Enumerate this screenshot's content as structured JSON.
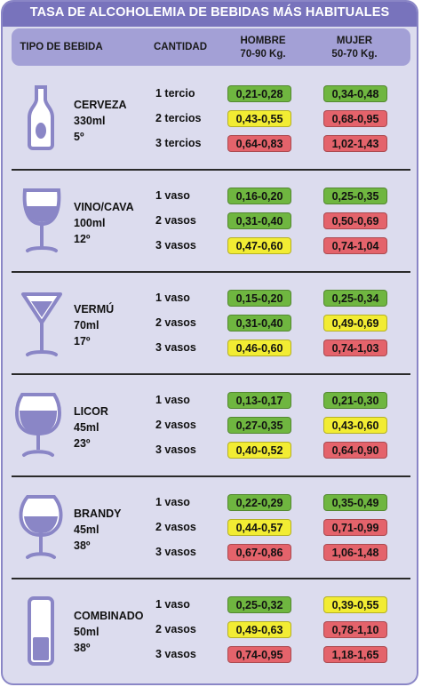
{
  "title": "TASA DE ALCOHOLEMIA DE BEBIDAS MÁS HABITUALES",
  "colors": {
    "green": "#6fb640",
    "yellow": "#f2ec33",
    "red": "#e4636b",
    "frame": "#7873bc"
  },
  "header": {
    "drink_type": "TIPO DE BEBIDA",
    "quantity": "CANTIDAD",
    "man_line1": "HOMBRE",
    "man_line2": "70-90 Kg.",
    "woman_line1": "MUJER",
    "woman_line2": "50-70 Kg."
  },
  "drinks": [
    {
      "name": "CERVEZA",
      "volume": "330ml",
      "grade": "5º",
      "icon": "beer-bottle-icon",
      "rows": [
        {
          "qty": "1 tercio",
          "man": "0,21-0,28",
          "man_level": "green",
          "woman": "0,34-0,48",
          "woman_level": "green"
        },
        {
          "qty": "2 tercios",
          "man": "0,43-0,55",
          "man_level": "yellow",
          "woman": "0,68-0,95",
          "woman_level": "red"
        },
        {
          "qty": "3 tercios",
          "man": "0,64-0,83",
          "man_level": "red",
          "woman": "1,02-1,43",
          "woman_level": "red"
        }
      ]
    },
    {
      "name": "VINO/CAVA",
      "volume": "100ml",
      "grade": "12º",
      "icon": "wine-glass-icon",
      "rows": [
        {
          "qty": "1 vaso",
          "man": "0,16-0,20",
          "man_level": "green",
          "woman": "0,25-0,35",
          "woman_level": "green"
        },
        {
          "qty": "2 vasos",
          "man": "0,31-0,40",
          "man_level": "green",
          "woman": "0,50-0,69",
          "woman_level": "red"
        },
        {
          "qty": "3 vasos",
          "man": "0,47-0,60",
          "man_level": "yellow",
          "woman": "0,74-1,04",
          "woman_level": "red"
        }
      ]
    },
    {
      "name": "VERMÚ",
      "volume": "70ml",
      "grade": "17º",
      "icon": "martini-glass-icon",
      "rows": [
        {
          "qty": "1 vaso",
          "man": "0,15-0,20",
          "man_level": "green",
          "woman": "0,25-0,34",
          "woman_level": "green"
        },
        {
          "qty": "2 vasos",
          "man": "0,31-0,40",
          "man_level": "green",
          "woman": "0,49-0,69",
          "woman_level": "yellow"
        },
        {
          "qty": "3 vasos",
          "man": "0,46-0,60",
          "man_level": "yellow",
          "woman": "0,74-1,03",
          "woman_level": "red"
        }
      ]
    },
    {
      "name": "LICOR",
      "volume": "45ml",
      "grade": "23º",
      "icon": "liqueur-glass-icon",
      "rows": [
        {
          "qty": "1 vaso",
          "man": "0,13-0,17",
          "man_level": "green",
          "woman": "0,21-0,30",
          "woman_level": "green"
        },
        {
          "qty": "2 vasos",
          "man": "0,27-0,35",
          "man_level": "green",
          "woman": "0,43-0,60",
          "woman_level": "yellow"
        },
        {
          "qty": "3 vasos",
          "man": "0,40-0,52",
          "man_level": "yellow",
          "woman": "0,64-0,90",
          "woman_level": "red"
        }
      ]
    },
    {
      "name": "BRANDY",
      "volume": "45ml",
      "grade": "38º",
      "icon": "brandy-glass-icon",
      "rows": [
        {
          "qty": "1 vaso",
          "man": "0,22-0,29",
          "man_level": "green",
          "woman": "0,35-0,49",
          "woman_level": "green"
        },
        {
          "qty": "2 vasos",
          "man": "0,44-0,57",
          "man_level": "yellow",
          "woman": "0,71-0,99",
          "woman_level": "red"
        },
        {
          "qty": "3 vasos",
          "man": "0,67-0,86",
          "man_level": "red",
          "woman": "1,06-1,48",
          "woman_level": "red"
        }
      ]
    },
    {
      "name": "COMBINADO",
      "volume": "50ml",
      "grade": "38º",
      "icon": "highball-glass-icon",
      "rows": [
        {
          "qty": "1 vaso",
          "man": "0,25-0,32",
          "man_level": "green",
          "woman": "0,39-0,55",
          "woman_level": "yellow"
        },
        {
          "qty": "2 vasos",
          "man": "0,49-0,63",
          "man_level": "yellow",
          "woman": "0,78-1,10",
          "woman_level": "red"
        },
        {
          "qty": "3 vasos",
          "man": "0,74-0,95",
          "man_level": "red",
          "woman": "1,18-1,65",
          "woman_level": "red"
        }
      ]
    }
  ]
}
